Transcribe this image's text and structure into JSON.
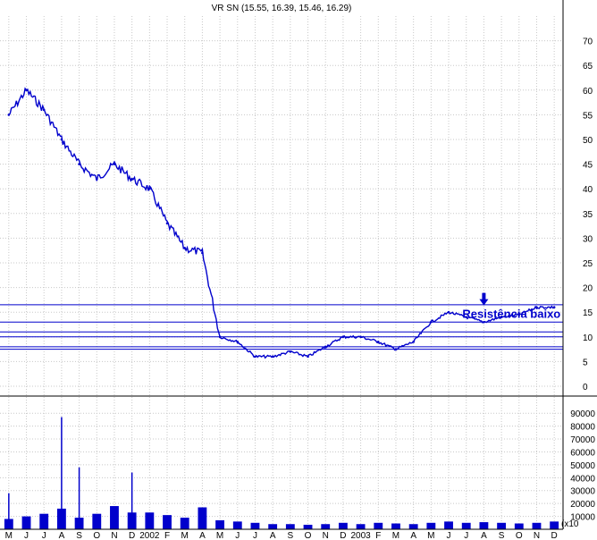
{
  "chart_data": [
    {
      "type": "line",
      "subtype": "ohlc-price",
      "title": "VR SN (15.55, 16.39, 15.46, 16.29)",
      "series_color": "#0000cc",
      "ylim": [
        0,
        75
      ],
      "yticks": [
        0,
        5,
        10,
        15,
        20,
        25,
        30,
        35,
        40,
        45,
        50,
        55,
        60,
        65,
        70
      ],
      "grid": true,
      "x": [
        "M",
        "J",
        "J",
        "A",
        "S",
        "O",
        "N",
        "D",
        "2002",
        "F",
        "M",
        "A",
        "M",
        "J",
        "J",
        "A",
        "S",
        "O",
        "N",
        "D",
        "2003",
        "F",
        "M",
        "A",
        "M",
        "J",
        "J",
        "A",
        "S",
        "O",
        "N",
        "D"
      ],
      "close": [
        55,
        60,
        56,
        50,
        45,
        42,
        45,
        42,
        40,
        33,
        28,
        27,
        10,
        9,
        6,
        6,
        7,
        6,
        8,
        10,
        10,
        9,
        7.5,
        9,
        13,
        15,
        14,
        13,
        14,
        14.5,
        16,
        16
      ],
      "horizontal_lines": [
        16.5,
        13,
        11,
        10,
        8,
        7.5
      ],
      "annotations": [
        {
          "text": "Resistência baixo",
          "x": "A",
          "y": 16
        }
      ]
    },
    {
      "type": "bar",
      "subtype": "volume",
      "ylabel": "(x10",
      "series_color": "#0000cc",
      "ylim": [
        0,
        95000
      ],
      "yticks": [
        10000,
        20000,
        30000,
        40000,
        50000,
        60000,
        70000,
        80000,
        90000
      ],
      "x": [
        "M",
        "J",
        "J",
        "A",
        "S",
        "O",
        "N",
        "D",
        "2002",
        "F",
        "M",
        "A",
        "M",
        "J",
        "J",
        "A",
        "S",
        "O",
        "N",
        "D",
        "2003",
        "F",
        "M",
        "A",
        "M",
        "J",
        "J",
        "A",
        "S",
        "O",
        "N",
        "D"
      ],
      "values": [
        8000,
        10000,
        12000,
        16000,
        9000,
        12000,
        18000,
        13000,
        13000,
        11000,
        9000,
        17000,
        7000,
        6000,
        5000,
        4000,
        4000,
        3500,
        4000,
        5000,
        4000,
        5000,
        4500,
        4000,
        5000,
        6000,
        5000,
        5500,
        5000,
        4500,
        5000,
        6000
      ],
      "spikes": [
        {
          "x": "S",
          "value": 48000
        },
        {
          "x": "D",
          "value": 44000
        },
        {
          "x": "A",
          "value": 87000
        },
        {
          "x": "M",
          "value": 28000
        }
      ]
    }
  ]
}
